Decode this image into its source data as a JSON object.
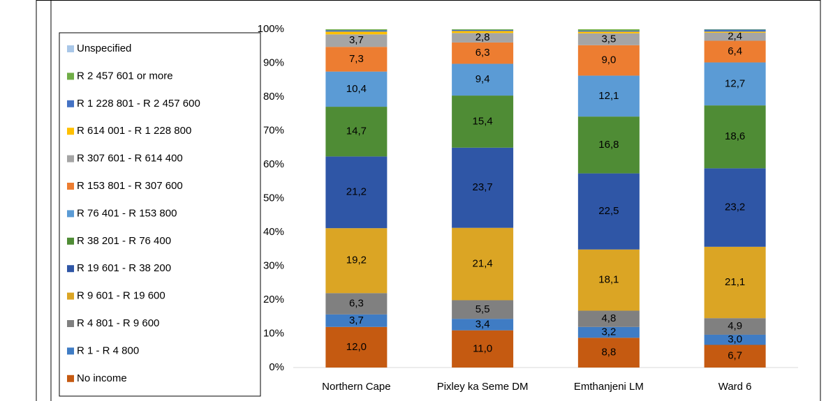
{
  "chart_data": {
    "type": "bar",
    "stacked": true,
    "legend": "left",
    "categories": [
      "Northern Cape",
      "Pixley ka Seme DM",
      "Emthanjeni LM",
      "Ward 6"
    ],
    "ylim": [
      0,
      100
    ],
    "yticks": [
      {
        "value": 0,
        "label": "0%"
      },
      {
        "value": 10,
        "label": "10%"
      },
      {
        "value": 20,
        "label": "20%"
      },
      {
        "value": 30,
        "label": "30%"
      },
      {
        "value": 40,
        "label": "40%"
      },
      {
        "value": 50,
        "label": "50%"
      },
      {
        "value": 60,
        "label": "60%"
      },
      {
        "value": 70,
        "label": "70%"
      },
      {
        "value": 80,
        "label": "80%"
      },
      {
        "value": 90,
        "label": "90%"
      },
      {
        "value": 100,
        "label": "100%"
      }
    ],
    "series": [
      {
        "name": "No income",
        "color": "#c55a11",
        "values": [
          12.0,
          11.0,
          8.8,
          6.7
        ],
        "value_labels": [
          "12,0",
          "11,0",
          "8,8",
          "6,7"
        ]
      },
      {
        "name": "R 1 - R 4 800",
        "color": "#3f7cc4",
        "values": [
          3.7,
          3.4,
          3.2,
          3.0
        ],
        "value_labels": [
          "3,7",
          "3,4",
          "3,2",
          "3,0"
        ]
      },
      {
        "name": "R 4 801 - R 9 600",
        "color": "#808080",
        "values": [
          6.3,
          5.5,
          4.8,
          4.9
        ],
        "value_labels": [
          "6,3",
          "5,5",
          "4,8",
          "4,9"
        ]
      },
      {
        "name": "R 9 601 - R 19 600",
        "color": "#dba524",
        "values": [
          19.2,
          21.4,
          18.1,
          21.1
        ],
        "value_labels": [
          "19,2",
          "21,4",
          "18,1",
          "21,1"
        ]
      },
      {
        "name": "R 19 601 - R 38 200",
        "color": "#2f56a6",
        "values": [
          21.2,
          23.7,
          22.5,
          23.2
        ],
        "value_labels": [
          "21,2",
          "23,7",
          "22,5",
          "23,2"
        ]
      },
      {
        "name": "R 38 201 - R 76 400",
        "color": "#4f8c35",
        "values": [
          14.7,
          15.4,
          16.8,
          18.6
        ],
        "value_labels": [
          "14,7",
          "15,4",
          "16,8",
          "18,6"
        ]
      },
      {
        "name": "R 76 401 - R 153 800",
        "color": "#5b9bd5",
        "values": [
          10.4,
          9.4,
          12.1,
          12.7
        ],
        "value_labels": [
          "10,4",
          "9,4",
          "12,1",
          "12,7"
        ]
      },
      {
        "name": "R 153 801 - R 307 600",
        "color": "#ed7d31",
        "values": [
          7.3,
          6.3,
          9.0,
          6.4
        ],
        "value_labels": [
          "7,3",
          "6,3",
          "9,0",
          "6,4"
        ]
      },
      {
        "name": "R 307 601 - R 614 400",
        "color": "#a5a5a5",
        "values": [
          3.7,
          2.8,
          3.5,
          2.4
        ],
        "value_labels": [
          "3,7",
          "2,8",
          "3,5",
          "2,4"
        ]
      },
      {
        "name": "R 614 001 - R 1 228 800",
        "color": "#ffc000",
        "values": [
          0.8,
          0.6,
          0.5,
          0.3
        ]
      },
      {
        "name": "R 1 228 801 - R 2 457 600",
        "color": "#4472c4",
        "values": [
          0.4,
          0.3,
          0.3,
          0.6
        ]
      },
      {
        "name": "R 2 457 601 or more",
        "color": "#70ad47",
        "values": [
          0.3,
          0.2,
          0.4,
          0.1
        ]
      },
      {
        "name": "Unspecified",
        "color": "#a9c7e8",
        "values": [
          0,
          0,
          0,
          0
        ]
      }
    ]
  }
}
